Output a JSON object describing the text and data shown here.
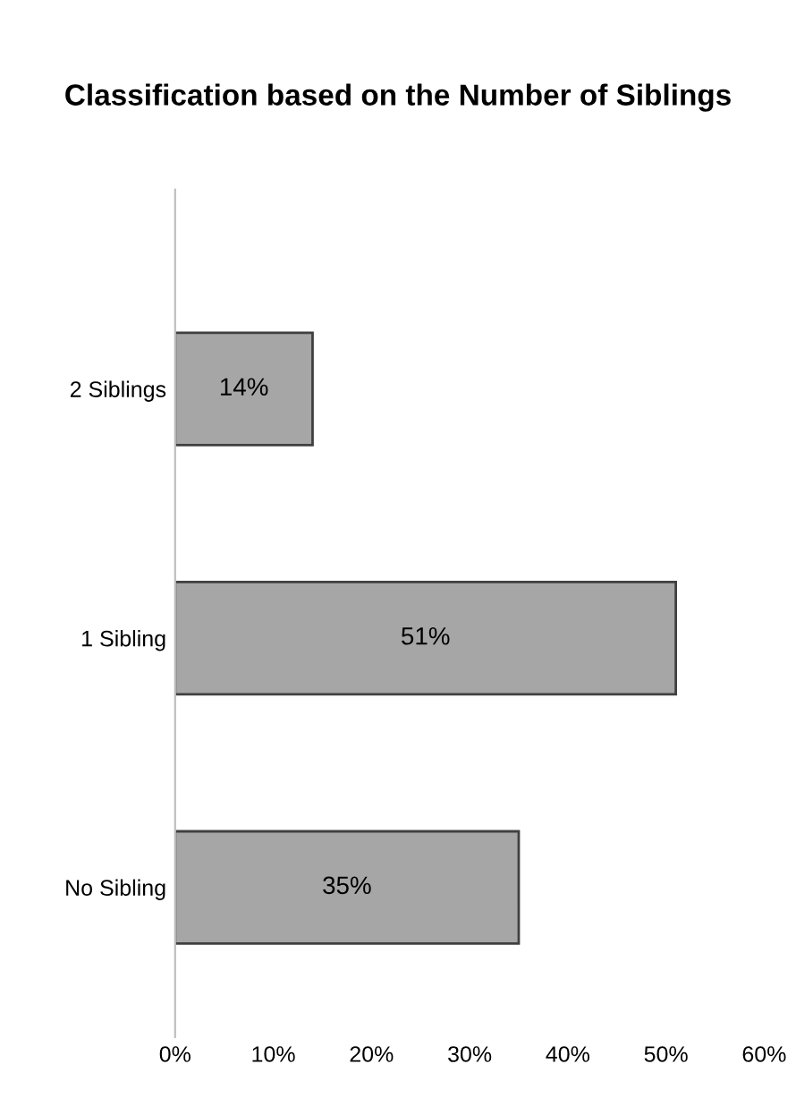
{
  "chart_data": {
    "type": "bar",
    "orientation": "horizontal",
    "title": "Classification based on the Number of Siblings",
    "categories": [
      "2 Siblings",
      "1 Sibling",
      "No Sibling"
    ],
    "values": [
      14,
      51,
      35
    ],
    "value_labels": [
      "14%",
      "51%",
      "35%"
    ],
    "color": "#a6a6a6",
    "xlim": [
      0,
      60
    ],
    "xticks": [
      {
        "value": 0,
        "label": "0%"
      },
      {
        "value": 10,
        "label": "10%"
      },
      {
        "value": 20,
        "label": "20%"
      },
      {
        "value": 30,
        "label": "30%"
      },
      {
        "value": 40,
        "label": "40%"
      },
      {
        "value": 50,
        "label": "50%"
      },
      {
        "value": 60,
        "label": "60%"
      }
    ],
    "grid": false,
    "legend": false
  }
}
